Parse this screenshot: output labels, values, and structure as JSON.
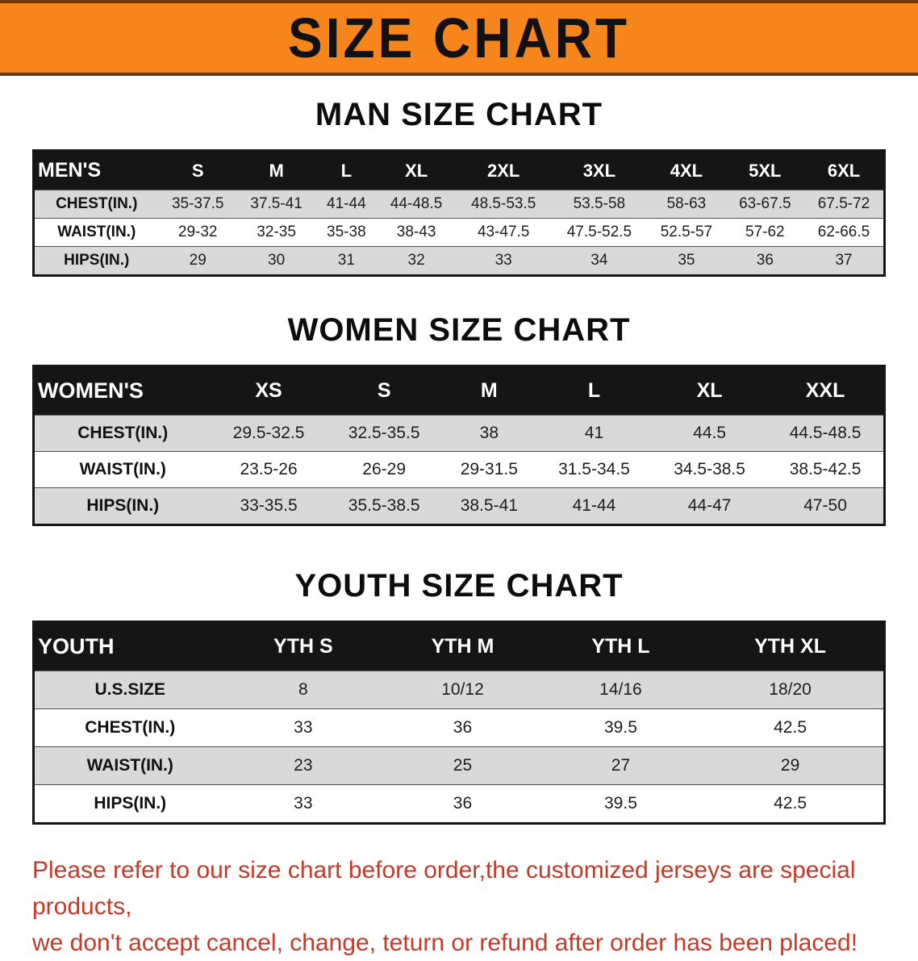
{
  "banner": {
    "title": "SIZE CHART"
  },
  "colors": {
    "banner_bg": "#f6861c",
    "table_header_bg": "#151515",
    "row_stripe": "#d9d9d9",
    "notice_text": "#c23a28"
  },
  "sections": [
    {
      "heading": "MAN SIZE CHART",
      "header": {
        "label": "MEN'S",
        "columns": [
          "S",
          "M",
          "L",
          "XL",
          "2XL",
          "3XL",
          "4XL",
          "5XL",
          "6XL"
        ]
      },
      "rows": [
        {
          "label": "CHEST(IN.)",
          "values": [
            "35-37.5",
            "37.5-41",
            "41-44",
            "44-48.5",
            "48.5-53.5",
            "53.5-58",
            "58-63",
            "63-67.5",
            "67.5-72"
          ]
        },
        {
          "label": "WAIST(IN.)",
          "values": [
            "29-32",
            "32-35",
            "35-38",
            "38-43",
            "43-47.5",
            "47.5-52.5",
            "52.5-57",
            "57-62",
            "62-66.5"
          ]
        },
        {
          "label": "HIPS(IN.)",
          "values": [
            "29",
            "30",
            "31",
            "32",
            "33",
            "34",
            "35",
            "36",
            "37"
          ]
        }
      ]
    },
    {
      "heading": "WOMEN SIZE CHART",
      "header": {
        "label": "WOMEN'S",
        "columns": [
          "XS",
          "S",
          "M",
          "L",
          "XL",
          "XXL"
        ]
      },
      "rows": [
        {
          "label": "CHEST(IN.)",
          "values": [
            "29.5-32.5",
            "32.5-35.5",
            "38",
            "41",
            "44.5",
            "44.5-48.5"
          ]
        },
        {
          "label": "WAIST(IN.)",
          "values": [
            "23.5-26",
            "26-29",
            "29-31.5",
            "31.5-34.5",
            "34.5-38.5",
            "38.5-42.5"
          ]
        },
        {
          "label": "HIPS(IN.)",
          "values": [
            "33-35.5",
            "35.5-38.5",
            "38.5-41",
            "41-44",
            "44-47",
            "47-50"
          ]
        }
      ]
    },
    {
      "heading": "YOUTH SIZE CHART",
      "header": {
        "label": "YOUTH",
        "columns": [
          "YTH S",
          "YTH M",
          "YTH L",
          "YTH XL"
        ]
      },
      "rows": [
        {
          "label": "U.S.SIZE",
          "values": [
            "8",
            "10/12",
            "14/16",
            "18/20"
          ]
        },
        {
          "label": "CHEST(IN.)",
          "values": [
            "33",
            "36",
            "39.5",
            "42.5"
          ]
        },
        {
          "label": "WAIST(IN.)",
          "values": [
            "23",
            "25",
            "27",
            "29"
          ]
        },
        {
          "label": "HIPS(IN.)",
          "values": [
            "33",
            "36",
            "39.5",
            "42.5"
          ]
        }
      ]
    }
  ],
  "footer": {
    "line1": "Please refer to our size chart before order,the customized jerseys are special products,",
    "line2": "we don't accept cancel, change, teturn or refund after order has been placed!"
  }
}
